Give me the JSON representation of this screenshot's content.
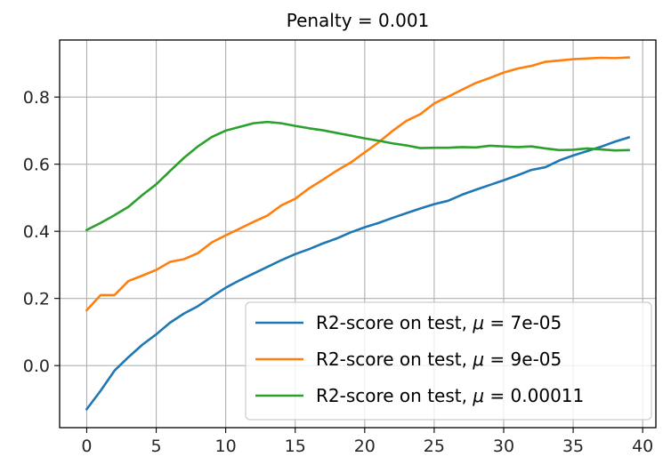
{
  "chart_data": {
    "type": "line",
    "title": "Penalty = 0.001",
    "xlabel": "",
    "ylabel": "",
    "xlim": [
      -1.95,
      40.95
    ],
    "ylim": [
      -0.185,
      0.97
    ],
    "xticks": [
      0,
      5,
      10,
      15,
      20,
      25,
      30,
      35,
      40
    ],
    "xtick_labels": [
      "0",
      "5",
      "10",
      "15",
      "20",
      "25",
      "30",
      "35",
      "40"
    ],
    "yticks": [
      0.0,
      0.2,
      0.4,
      0.6,
      0.8
    ],
    "ytick_labels": [
      "0.0",
      "0.2",
      "0.4",
      "0.6",
      "0.8"
    ],
    "grid": true,
    "legend_position": "lower-right",
    "x": [
      0,
      1,
      2,
      3,
      4,
      5,
      6,
      7,
      8,
      9,
      10,
      11,
      12,
      13,
      14,
      15,
      16,
      17,
      18,
      19,
      20,
      21,
      22,
      23,
      24,
      25,
      26,
      27,
      28,
      29,
      30,
      31,
      32,
      33,
      34,
      35,
      36,
      37,
      38,
      39
    ],
    "series": [
      {
        "name": "R2-score on test, μ = 7e-05",
        "label_prefix": "R2-score on test, ",
        "mu_symbol": "μ",
        "label_suffix": " = 7e-05",
        "color": "#1f77b4",
        "values": [
          -0.13,
          -0.075,
          -0.015,
          0.025,
          0.062,
          0.093,
          0.128,
          0.155,
          0.177,
          0.205,
          0.232,
          0.254,
          0.274,
          0.294,
          0.314,
          0.332,
          0.347,
          0.364,
          0.379,
          0.397,
          0.412,
          0.425,
          0.44,
          0.454,
          0.468,
          0.481,
          0.491,
          0.509,
          0.524,
          0.538,
          0.552,
          0.567,
          0.583,
          0.591,
          0.611,
          0.626,
          0.639,
          0.652,
          0.667,
          0.68
        ]
      },
      {
        "name": "R2-score on test, μ = 9e-05",
        "label_prefix": "R2-score on test, ",
        "mu_symbol": "μ",
        "label_suffix": " = 9e-05",
        "color": "#ff7f0e",
        "values": [
          0.165,
          0.21,
          0.21,
          0.252,
          0.268,
          0.285,
          0.309,
          0.317,
          0.335,
          0.367,
          0.388,
          0.408,
          0.428,
          0.447,
          0.477,
          0.497,
          0.528,
          0.554,
          0.581,
          0.605,
          0.635,
          0.665,
          0.699,
          0.729,
          0.749,
          0.781,
          0.801,
          0.822,
          0.842,
          0.857,
          0.873,
          0.885,
          0.893,
          0.905,
          0.909,
          0.913,
          0.915,
          0.917,
          0.916,
          0.918
        ]
      },
      {
        "name": "R2-score on test, μ = 0.00011",
        "label_prefix": "R2-score on test, ",
        "mu_symbol": "μ",
        "label_suffix": " = 0.00011",
        "color": "#2ca02c",
        "values": [
          0.404,
          0.425,
          0.448,
          0.473,
          0.508,
          0.54,
          0.58,
          0.619,
          0.653,
          0.681,
          0.7,
          0.711,
          0.722,
          0.726,
          0.722,
          0.714,
          0.707,
          0.701,
          0.693,
          0.685,
          0.677,
          0.67,
          0.662,
          0.656,
          0.648,
          0.649,
          0.649,
          0.651,
          0.65,
          0.655,
          0.653,
          0.651,
          0.653,
          0.647,
          0.642,
          0.643,
          0.647,
          0.644,
          0.641,
          0.642
        ]
      }
    ]
  }
}
